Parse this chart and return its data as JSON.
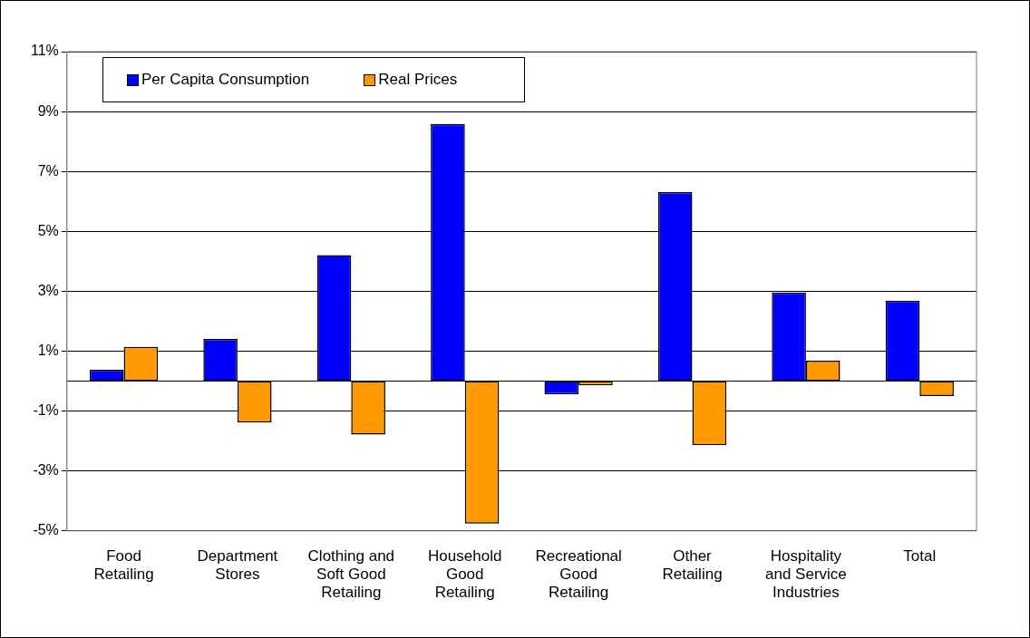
{
  "chart_data": {
    "type": "bar",
    "categories": [
      "Food Retailing",
      "Department Stores",
      "Clothing and Soft Good Retailing",
      "Household Good Retailing",
      "Recreational Good Retailing",
      "Other Retailing",
      "Hospitality and Service Industries",
      "Total"
    ],
    "series": [
      {
        "name": "Per Capita Consumption",
        "color": "#0000ff",
        "values": [
          0.38,
          1.41,
          4.21,
          8.59,
          -0.44,
          6.31,
          2.96,
          2.69
        ]
      },
      {
        "name": "Real Prices",
        "color": "#ff9900",
        "values": [
          1.14,
          -1.38,
          -1.78,
          -4.76,
          -0.14,
          -2.14,
          0.68,
          -0.5
        ]
      }
    ],
    "ylim": [
      -5,
      11
    ],
    "yticks": [
      {
        "value": -5,
        "label": "-5%"
      },
      {
        "value": -3,
        "label": "-3%"
      },
      {
        "value": -1,
        "label": "-1%"
      },
      {
        "value": 1,
        "label": "1%"
      },
      {
        "value": 3,
        "label": "3%"
      },
      {
        "value": 5,
        "label": "5%"
      },
      {
        "value": 7,
        "label": "7%"
      },
      {
        "value": 9,
        "label": "9%"
      },
      {
        "value": 11,
        "label": "11%"
      }
    ],
    "ref_lines": [
      {
        "axis": "y",
        "value": 0,
        "color": "#000000"
      }
    ],
    "grid": "y",
    "legend": "top left"
  }
}
